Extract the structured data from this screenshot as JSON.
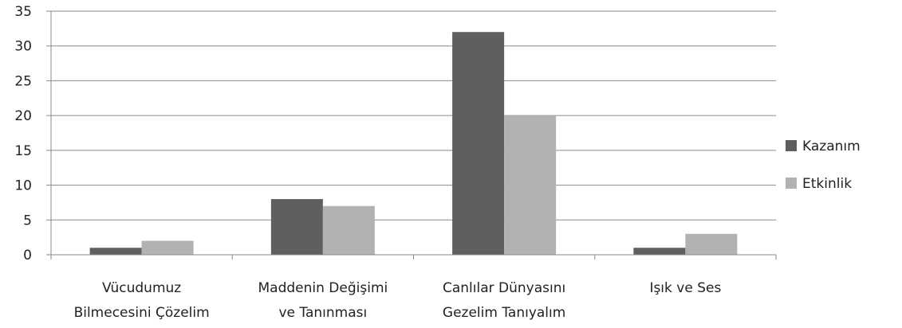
{
  "chart_data": {
    "type": "bar",
    "categories": [
      [
        "Vücudumuz",
        "Bilmecesini Çözelim"
      ],
      [
        "Maddenin Değişimi",
        "ve Tanınması"
      ],
      [
        "Canlılar Dünyasını",
        "Gezelim Tanıyalım"
      ],
      [
        "Işık ve Ses"
      ]
    ],
    "series": [
      {
        "name": "Kazanım",
        "values": [
          1,
          8,
          32,
          1
        ],
        "color": "#5f5f5f"
      },
      {
        "name": "Etkinlik",
        "values": [
          2,
          7,
          20,
          3
        ],
        "color": "#b2b2b2"
      }
    ],
    "ylim": [
      0,
      35
    ],
    "yticks": [
      0,
      5,
      10,
      15,
      20,
      25,
      30,
      35
    ],
    "grid": true,
    "legend": "right"
  }
}
